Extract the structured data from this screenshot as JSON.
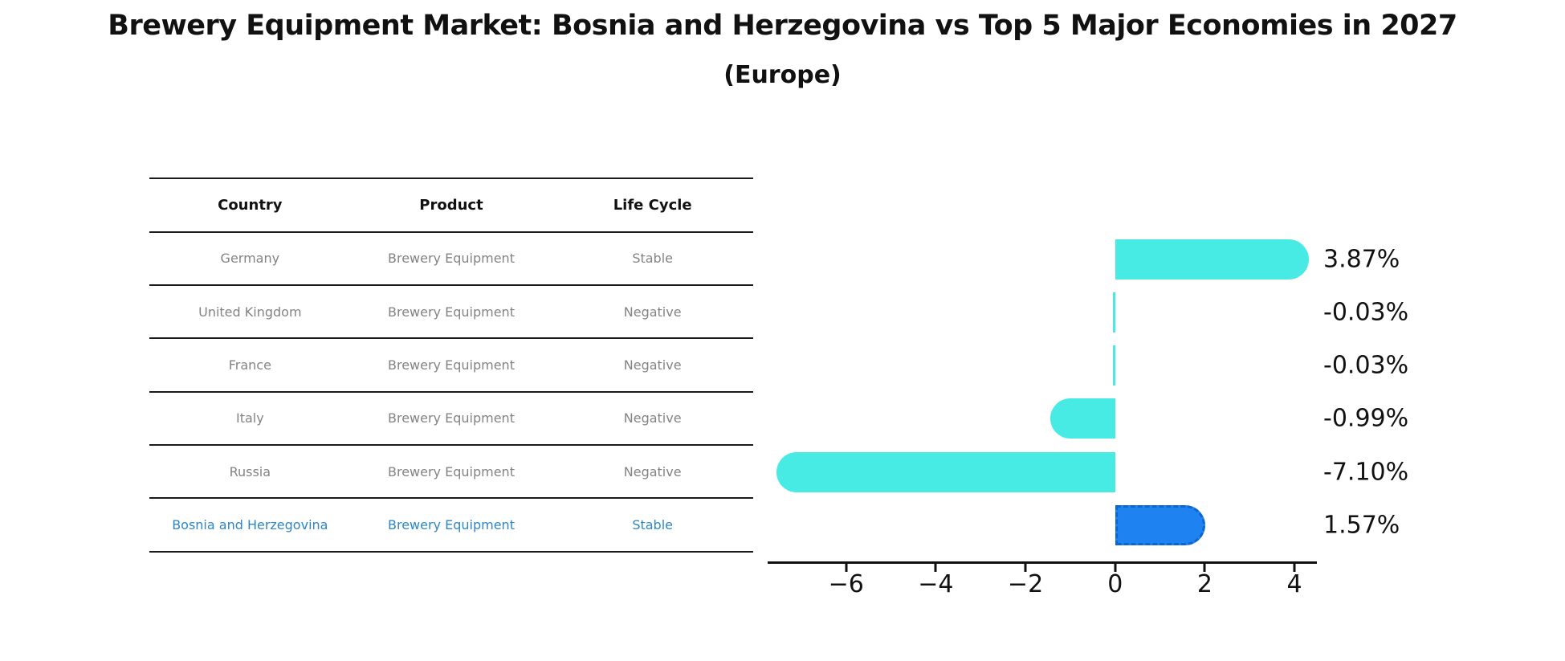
{
  "title": "Brewery Equipment Market: Bosnia and Herzegovina vs Top 5 Major Economies in 2027",
  "subtitle": "(Europe)",
  "colors": {
    "default_bar": "#48ebe4",
    "highlight_bar": "#1e82f0",
    "highlight_bar_edge": "#0d66cf",
    "highlight_text": "#2e86c4",
    "table_body_text": "#838383",
    "table_header_text": "#111111",
    "axis": "#111111"
  },
  "table": {
    "headers": [
      "Country",
      "Product",
      "Life Cycle"
    ],
    "rows": [
      {
        "country": "Germany",
        "product": "Brewery Equipment",
        "life_cycle": "Stable",
        "highlight": false
      },
      {
        "country": "United Kingdom",
        "product": "Brewery Equipment",
        "life_cycle": "Negative",
        "highlight": false
      },
      {
        "country": "France",
        "product": "Brewery Equipment",
        "life_cycle": "Negative",
        "highlight": false
      },
      {
        "country": "Italy",
        "product": "Brewery Equipment",
        "life_cycle": "Negative",
        "highlight": false
      },
      {
        "country": "Russia",
        "product": "Brewery Equipment",
        "life_cycle": "Negative",
        "highlight": false
      },
      {
        "country": "Bosnia and Herzegovina",
        "product": "Brewery Equipment",
        "life_cycle": "Stable",
        "highlight": true
      }
    ]
  },
  "chart_data": {
    "type": "bar",
    "orientation": "horizontal",
    "title": "",
    "xlabel": "",
    "ylabel": "",
    "categories": [
      "Germany",
      "United Kingdom",
      "France",
      "Italy",
      "Russia",
      "Bosnia and Herzegovina"
    ],
    "values": [
      3.87,
      -0.03,
      -0.03,
      -0.99,
      -7.1,
      1.57
    ],
    "value_labels": [
      "3.87%",
      "-0.03%",
      "-0.03%",
      "-0.99%",
      "-7.10%",
      "1.57%"
    ],
    "highlight_index": 5,
    "xlim": [
      -7.75,
      4.5
    ],
    "xticks": [
      -6,
      -4,
      -2,
      0,
      2,
      4
    ],
    "xtick_labels": [
      "−6",
      "−4",
      "−2",
      "0",
      "2",
      "4"
    ],
    "grid": false,
    "legend": null
  }
}
